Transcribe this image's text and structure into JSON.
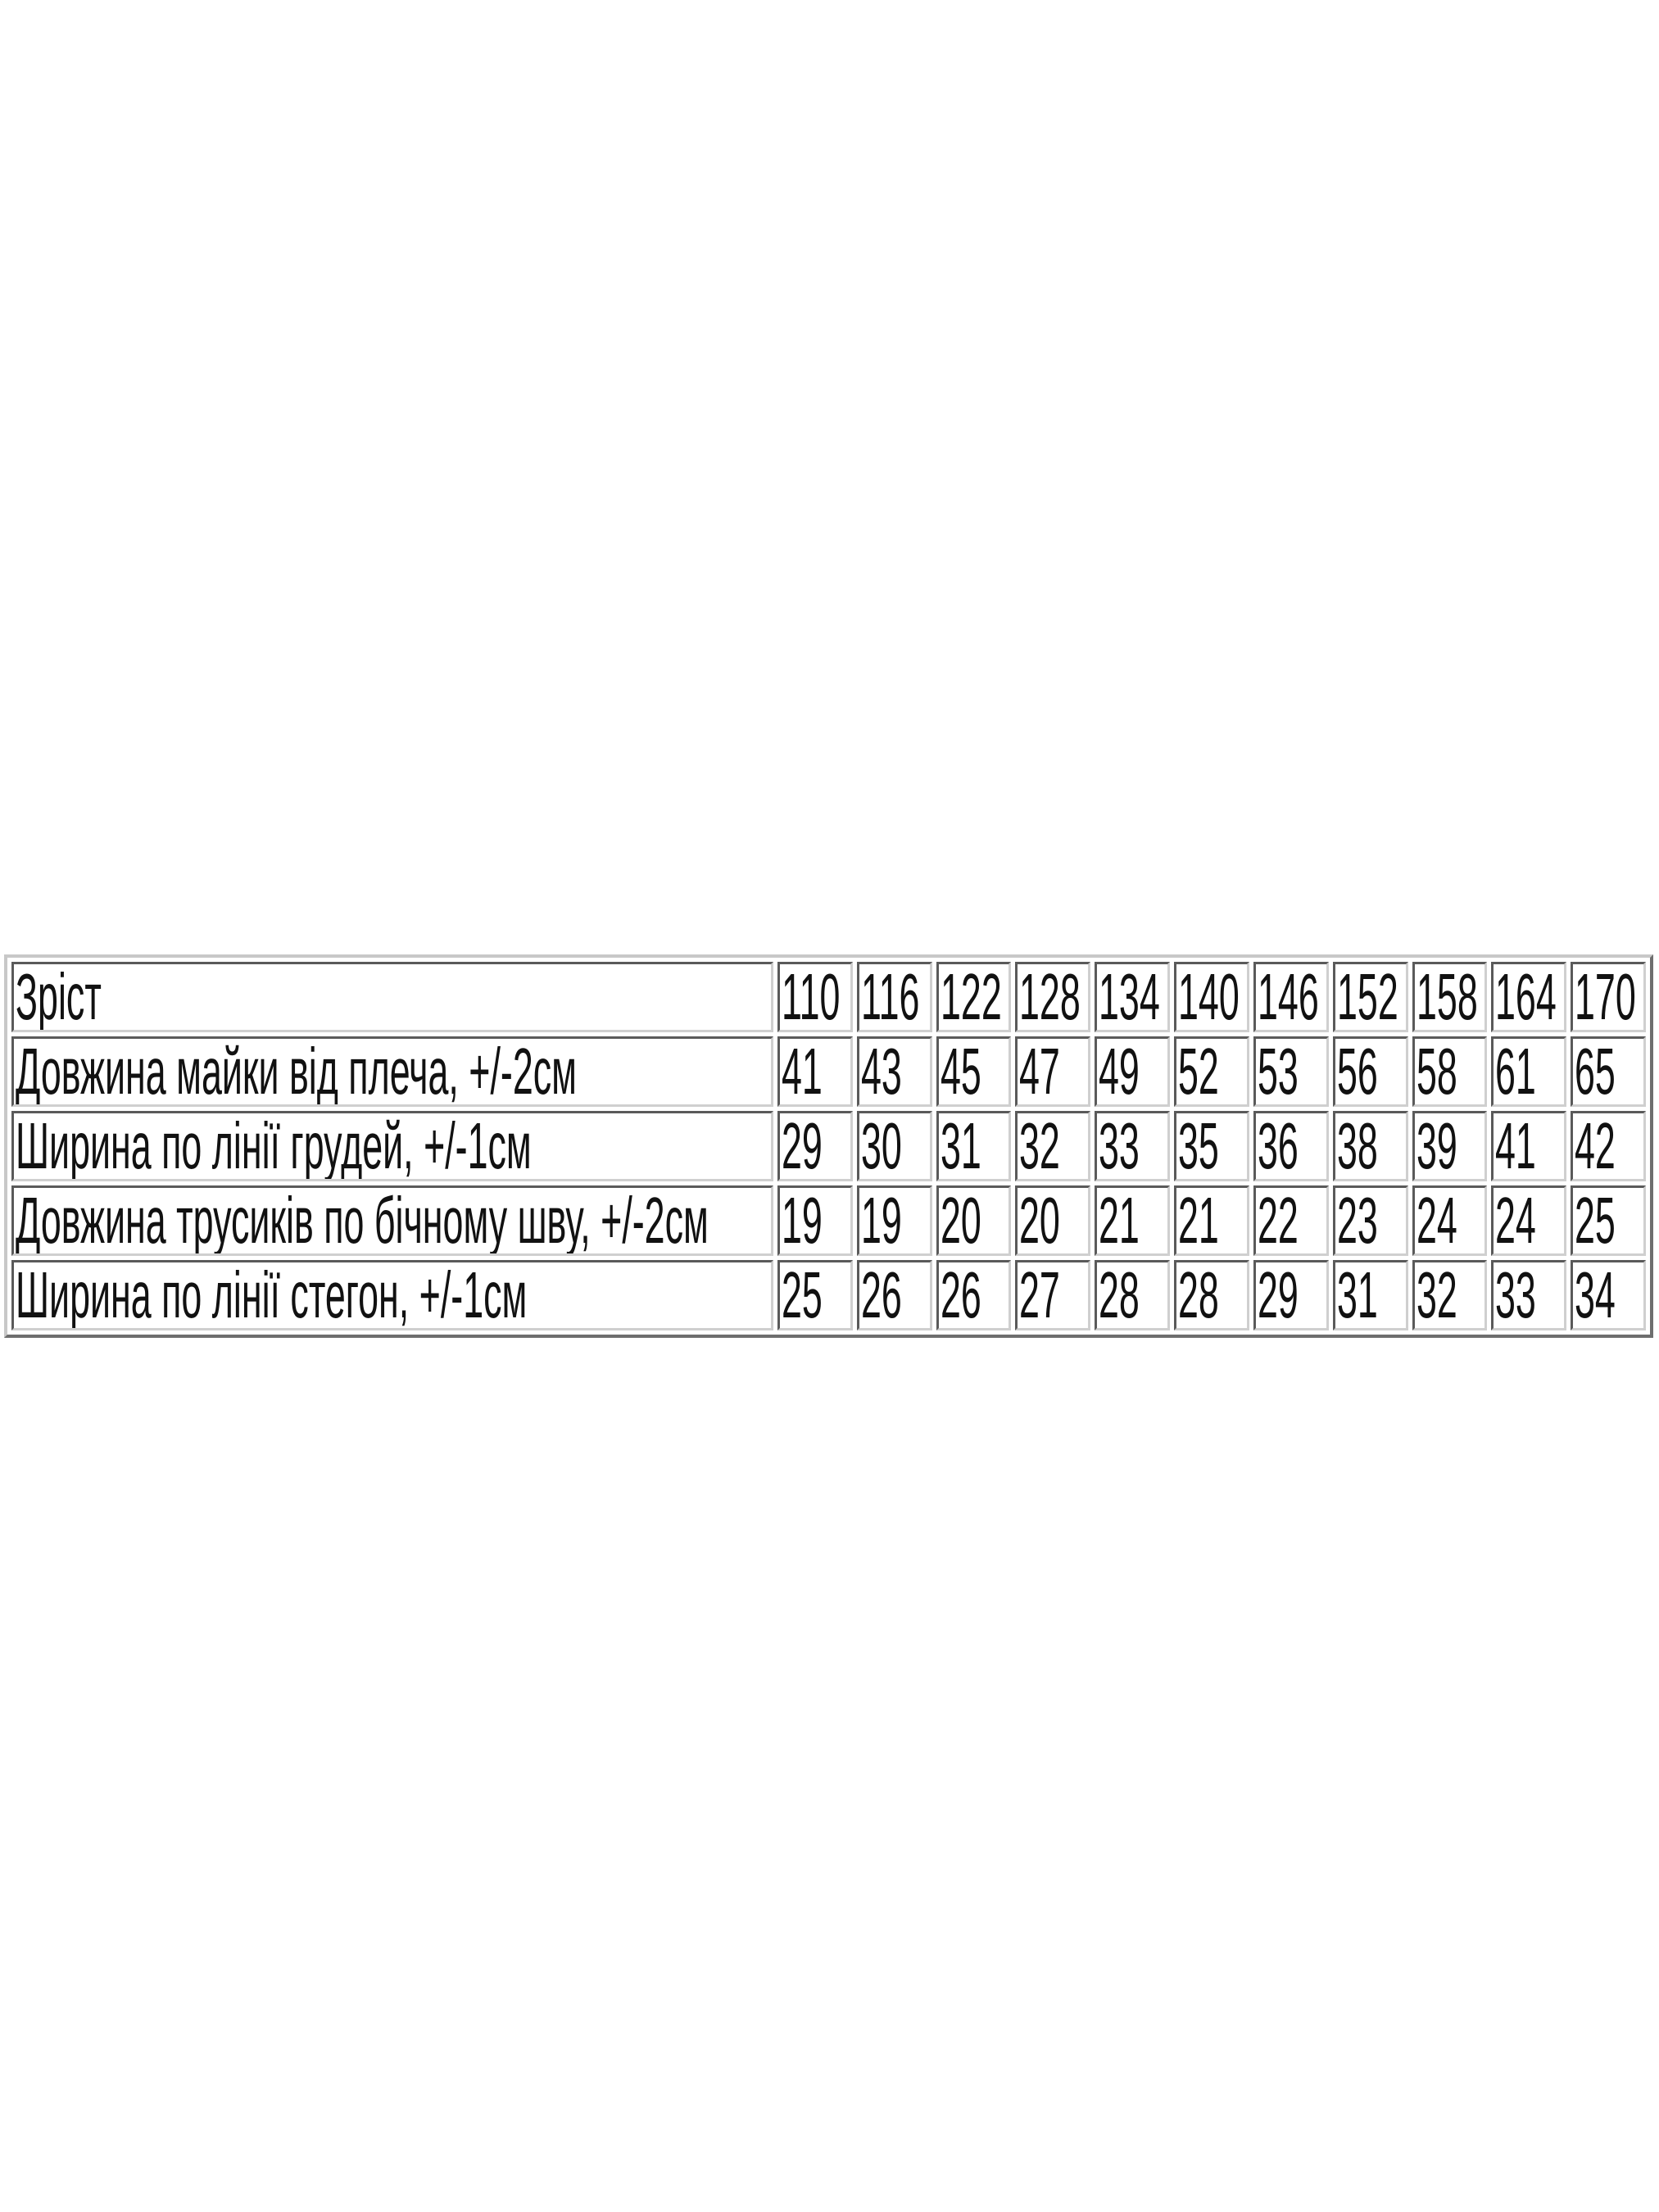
{
  "table": {
    "rows": [
      {
        "label": "Зріст",
        "values": [
          "110",
          "116",
          "122",
          "128",
          "134",
          "140",
          "146",
          "152",
          "158",
          "164",
          "170"
        ]
      },
      {
        "label": "Довжина майки від плеча, +/-2см",
        "values": [
          "41",
          "43",
          "45",
          "47",
          "49",
          "52",
          "53",
          "56",
          "58",
          "61",
          "65"
        ]
      },
      {
        "label": "Ширина по лінії грудей, +/-1см",
        "values": [
          "29",
          "30",
          "31",
          "32",
          "33",
          "35",
          "36",
          "38",
          "39",
          "41",
          "42"
        ]
      },
      {
        "label": "Довжина трусиків по бічному шву, +/-2см",
        "values": [
          "19",
          "19",
          "20",
          "20",
          "21",
          "21",
          "22",
          "23",
          "24",
          "24",
          "25"
        ]
      },
      {
        "label": "Ширина по лінії стегон, +/-1см",
        "values": [
          "25",
          "26",
          "26",
          "27",
          "28",
          "28",
          "29",
          "31",
          "32",
          "33",
          "34"
        ]
      }
    ]
  }
}
